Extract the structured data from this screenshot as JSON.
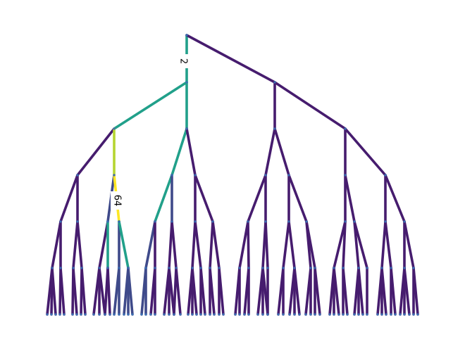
{
  "diagram": {
    "type": "tree",
    "colors": {
      "default_edge": "#461c6e",
      "teal": "#21a08a",
      "blue": "#3f4a8a",
      "yellow_green": "#b5d531",
      "yellow": "#fde725",
      "node": "#3b6fb4"
    },
    "edge_labels": [
      {
        "id": "root-left",
        "text": "2"
      },
      {
        "id": "deep-left",
        "text": "64"
      }
    ]
  }
}
